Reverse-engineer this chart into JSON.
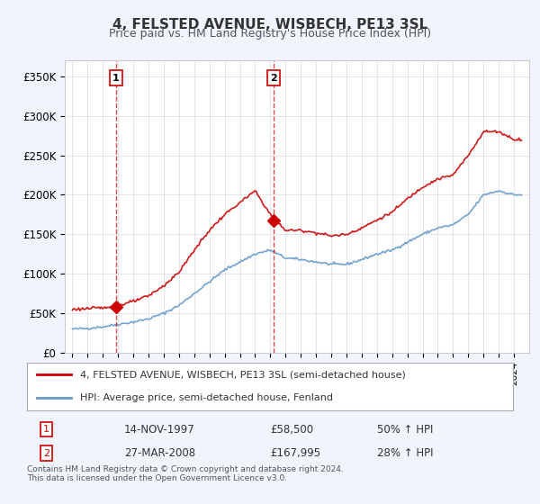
{
  "title": "4, FELSTED AVENUE, WISBECH, PE13 3SL",
  "subtitle": "Price paid vs. HM Land Registry's House Price Index (HPI)",
  "legend_line1": "4, FELSTED AVENUE, WISBECH, PE13 3SL (semi-detached house)",
  "legend_line2": "HPI: Average price, semi-detached house, Fenland",
  "footnote": "Contains HM Land Registry data © Crown copyright and database right 2024.\nThis data is licensed under the Open Government Licence v3.0.",
  "transaction1_label": "1",
  "transaction1_date": "14-NOV-1997",
  "transaction1_price": "£58,500",
  "transaction1_hpi": "50% ↑ HPI",
  "transaction1_year": 1997.87,
  "transaction1_value": 58500,
  "transaction2_label": "2",
  "transaction2_date": "27-MAR-2008",
  "transaction2_price": "£167,995",
  "transaction2_hpi": "28% ↑ HPI",
  "transaction2_year": 2008.23,
  "transaction2_value": 167995,
  "hpi_color": "#6699cc",
  "price_color": "#cc0000",
  "dashed_color": "#cc0000",
  "background_color": "#f0f4ff",
  "plot_bg": "#ffffff",
  "ylim": [
    0,
    370000
  ],
  "yticks": [
    0,
    50000,
    100000,
    150000,
    200000,
    250000,
    300000,
    350000
  ],
  "ytick_labels": [
    "£0",
    "£50K",
    "£100K",
    "£150K",
    "£200K",
    "£250K",
    "£300K",
    "£350K"
  ],
  "xlim_start": 1994.5,
  "xlim_end": 2025.0
}
